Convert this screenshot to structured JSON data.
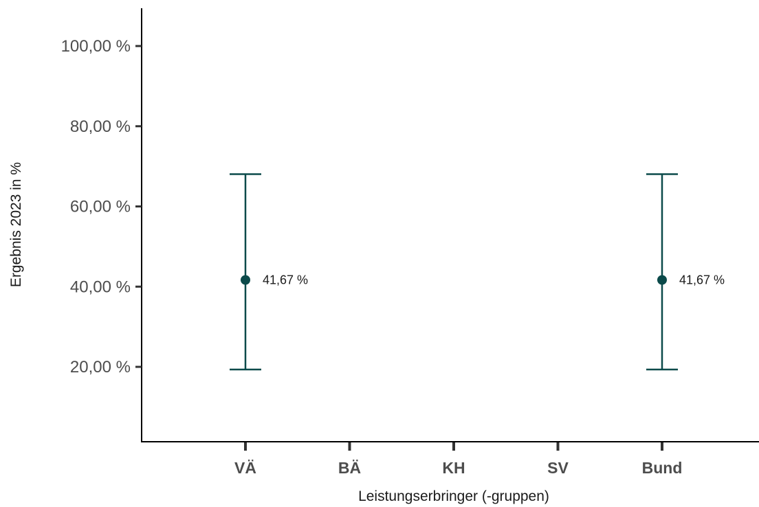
{
  "chart_data": {
    "type": "scatter",
    "categories": [
      "VÄ",
      "BÄ",
      "KH",
      "SV",
      "Bund"
    ],
    "points": [
      {
        "category": "VÄ",
        "value": 41.67,
        "lower": 19.33,
        "upper": 68.05,
        "label": "41,67 %"
      },
      {
        "category": "Bund",
        "value": 41.67,
        "lower": 19.33,
        "upper": 68.05,
        "label": "41,67 %"
      }
    ],
    "xlabel": "Leistungserbringer (-gruppen)",
    "ylabel": "Ergebnis 2023 in %",
    "ylim": [
      0,
      110
    ],
    "yticks": [
      20,
      40,
      60,
      80,
      100
    ],
    "ytick_labels": [
      "20,00 %",
      "40,00 %",
      "60,00 %",
      "80,00 %",
      "100,00 %"
    ],
    "grid": false,
    "colors": {
      "series": "#0b4a4a",
      "axis": "#000000",
      "ticks": "#333333"
    }
  }
}
